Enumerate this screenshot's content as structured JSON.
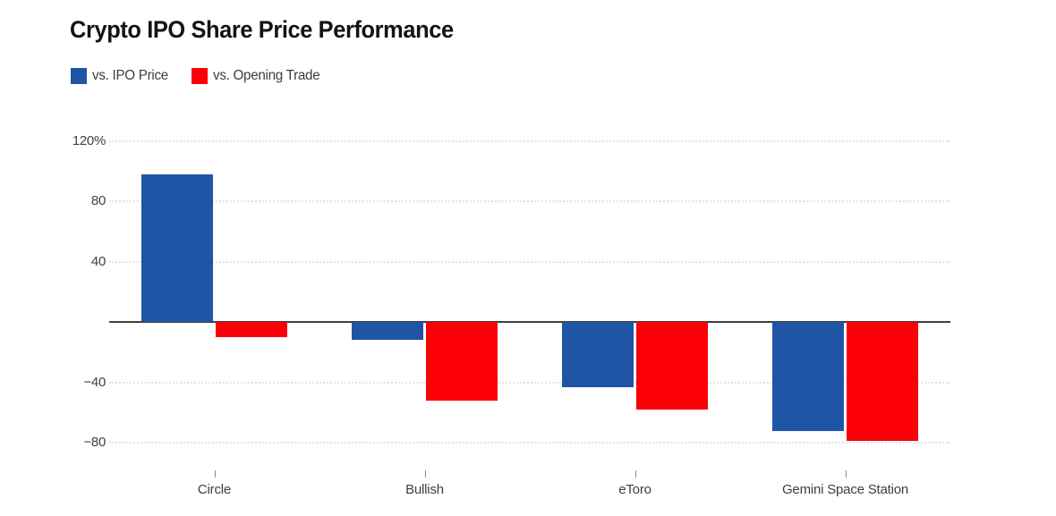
{
  "title": "Crypto IPO Share Price Performance",
  "legend": [
    {
      "label": "vs. IPO Price",
      "color": "#2055a5"
    },
    {
      "label": "vs. Opening Trade",
      "color": "#fb0007"
    }
  ],
  "chart_data": {
    "type": "bar",
    "title": "Crypto IPO Share Price Performance",
    "categories": [
      "Circle",
      "Bullish",
      "eToro",
      "Gemini Space Station"
    ],
    "series": [
      {
        "name": "vs. IPO Price",
        "color": "#2055a5",
        "values": [
          98,
          -12,
          -43,
          -72
        ]
      },
      {
        "name": "vs. Opening Trade",
        "color": "#fb0007",
        "values": [
          -10,
          -52,
          -58,
          -79
        ]
      }
    ],
    "xlabel": "",
    "ylabel": "",
    "unit": "%",
    "ylim": [
      -95,
      130
    ],
    "y_ticks": [
      120,
      80,
      40,
      -40,
      -80
    ],
    "y_tick_labels": [
      "120%",
      "80",
      "40",
      "−40",
      "−80"
    ],
    "baseline_value": 0,
    "grid": "horizontal-dotted",
    "legend_position": "top-left"
  },
  "colors": {
    "background": "#ffffff",
    "grid": "#e2e2e2",
    "baseline": "#404040",
    "axis_text": "#3f3f3f",
    "title_text": "#131313"
  }
}
